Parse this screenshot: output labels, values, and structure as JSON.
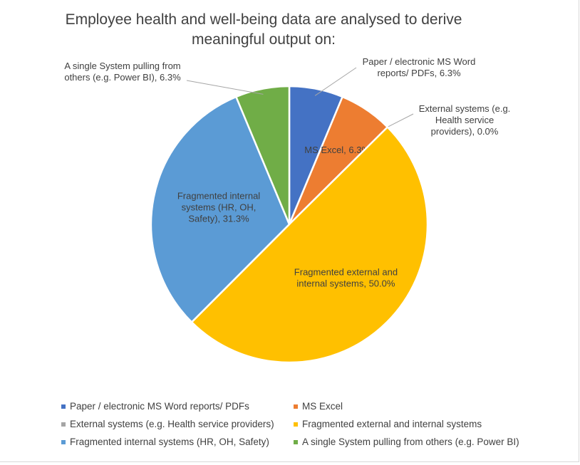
{
  "chart_data": {
    "type": "pie",
    "title": "Employee health and well-being data are analysed to derive meaningful output on:",
    "slices": [
      {
        "name": "Paper / electronic MS Word reports/ PDFs",
        "value": 6.3,
        "label": "6.3%",
        "color": "#4472C4"
      },
      {
        "name": "MS Excel",
        "value": 6.3,
        "label": "6.3%",
        "color": "#ED7D31"
      },
      {
        "name": "External systems (e.g. Health service providers)",
        "value": 0.0,
        "label": "0.0%",
        "color": "#A5A5A5"
      },
      {
        "name": "Fragmented external and internal systems",
        "value": 50.0,
        "label": "50.0%",
        "color": "#FFC000"
      },
      {
        "name": "Fragmented internal systems (HR, OH, Safety)",
        "value": 31.3,
        "label": "31.3%",
        "color": "#5B9BD5"
      },
      {
        "name": "A single System pulling from others (e.g. Power BI)",
        "value": 6.3,
        "label": "6.3%",
        "color": "#70AD47"
      }
    ],
    "legend_position": "bottom"
  }
}
